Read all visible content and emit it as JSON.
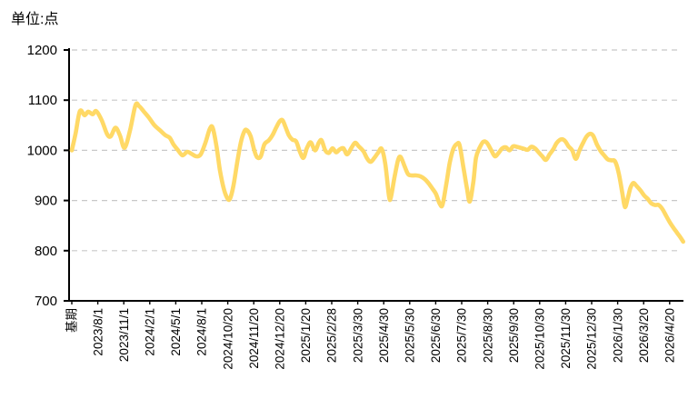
{
  "chart": {
    "unit_label": "单位:点"
  },
  "chart_data": {
    "type": "line",
    "title": "单位:点",
    "xlabel": "",
    "ylabel": "点",
    "ylim": [
      700,
      1200
    ],
    "yticks": [
      700,
      800,
      900,
      1000,
      1100,
      1200
    ],
    "grid": "horizontal-dashed",
    "legend": "none",
    "x_unit": "label_index",
    "x_labels": [
      "基期",
      "2023/8/1",
      "2023/11/1",
      "2024/2/1",
      "2024/5/1",
      "2024/8/1",
      "2024/10/20",
      "2024/11/20",
      "2024/12/20",
      "2025/1/20",
      "2025/2/28",
      "2025/3/30",
      "2025/4/30",
      "2025/5/30",
      "2025/6/30",
      "2025/7/30",
      "2025/8/30",
      "2025/9/30",
      "2025/10/30",
      "2025/11/30",
      "2025/12/30",
      "2026/1/30",
      "2026/3/20",
      "2026/4/20"
    ],
    "colors": {
      "line": "#FFD966",
      "grid": "#C8C8C8",
      "axis": "#000000",
      "text": "#000000",
      "background": "#FFFFFF"
    },
    "series": [
      {
        "points": [
          [
            0,
            1000
          ],
          [
            0.14,
            1032
          ],
          [
            0.31,
            1078
          ],
          [
            0.49,
            1070
          ],
          [
            0.63,
            1077
          ],
          [
            0.8,
            1072
          ],
          [
            0.94,
            1078
          ],
          [
            1.15,
            1060
          ],
          [
            1.36,
            1032
          ],
          [
            1.5,
            1028
          ],
          [
            1.68,
            1045
          ],
          [
            1.85,
            1030
          ],
          [
            2.03,
            1005
          ],
          [
            2.24,
            1040
          ],
          [
            2.45,
            1090
          ],
          [
            2.59,
            1088
          ],
          [
            2.76,
            1078
          ],
          [
            2.97,
            1065
          ],
          [
            3.18,
            1050
          ],
          [
            3.39,
            1040
          ],
          [
            3.6,
            1030
          ],
          [
            3.77,
            1025
          ],
          [
            3.91,
            1012
          ],
          [
            4.09,
            1000
          ],
          [
            4.26,
            990
          ],
          [
            4.44,
            997
          ],
          [
            4.61,
            993
          ],
          [
            4.79,
            988
          ],
          [
            4.96,
            992
          ],
          [
            5.14,
            1015
          ],
          [
            5.31,
            1043
          ],
          [
            5.42,
            1045
          ],
          [
            5.56,
            1010
          ],
          [
            5.7,
            960
          ],
          [
            5.84,
            925
          ],
          [
            5.97,
            906
          ],
          [
            6.08,
            903
          ],
          [
            6.22,
            930
          ],
          [
            6.36,
            975
          ],
          [
            6.5,
            1015
          ],
          [
            6.64,
            1038
          ],
          [
            6.74,
            1040
          ],
          [
            6.88,
            1028
          ],
          [
            7.02,
            1000
          ],
          [
            7.13,
            986
          ],
          [
            7.27,
            988
          ],
          [
            7.41,
            1012
          ],
          [
            7.58,
            1020
          ],
          [
            7.72,
            1030
          ],
          [
            7.86,
            1045
          ],
          [
            8.0,
            1058
          ],
          [
            8.11,
            1060
          ],
          [
            8.21,
            1048
          ],
          [
            8.35,
            1030
          ],
          [
            8.49,
            1021
          ],
          [
            8.63,
            1018
          ],
          [
            8.77,
            998
          ],
          [
            8.91,
            985
          ],
          [
            9.05,
            1005
          ],
          [
            9.19,
            1016
          ],
          [
            9.36,
            1000
          ],
          [
            9.5,
            1015
          ],
          [
            9.61,
            1020
          ],
          [
            9.75,
            1000
          ],
          [
            9.89,
            995
          ],
          [
            10.03,
            1004
          ],
          [
            10.17,
            996
          ],
          [
            10.31,
            1002
          ],
          [
            10.45,
            1004
          ],
          [
            10.59,
            992
          ],
          [
            10.76,
            1005
          ],
          [
            10.9,
            1015
          ],
          [
            11.04,
            1008
          ],
          [
            11.22,
            998
          ],
          [
            11.36,
            984
          ],
          [
            11.5,
            977
          ],
          [
            11.64,
            985
          ],
          [
            11.78,
            995
          ],
          [
            11.92,
            1003
          ],
          [
            12.06,
            973
          ],
          [
            12.2,
            910
          ],
          [
            12.27,
            905
          ],
          [
            12.41,
            945
          ],
          [
            12.55,
            980
          ],
          [
            12.65,
            987
          ],
          [
            12.79,
            970
          ],
          [
            12.93,
            953
          ],
          [
            13.07,
            950
          ],
          [
            13.24,
            950
          ],
          [
            13.42,
            948
          ],
          [
            13.59,
            942
          ],
          [
            13.73,
            934
          ],
          [
            13.87,
            924
          ],
          [
            14.01,
            913
          ],
          [
            14.15,
            894
          ],
          [
            14.26,
            891
          ],
          [
            14.4,
            930
          ],
          [
            14.54,
            975
          ],
          [
            14.68,
            1003
          ],
          [
            14.82,
            1013
          ],
          [
            14.92,
            1010
          ],
          [
            15.06,
            968
          ],
          [
            15.2,
            925
          ],
          [
            15.31,
            898
          ],
          [
            15.45,
            938
          ],
          [
            15.55,
            985
          ],
          [
            15.69,
            1005
          ],
          [
            15.83,
            1017
          ],
          [
            15.97,
            1015
          ],
          [
            16.14,
            1000
          ],
          [
            16.28,
            988
          ],
          [
            16.42,
            995
          ],
          [
            16.56,
            1004
          ],
          [
            16.7,
            1006
          ],
          [
            16.84,
            1000
          ],
          [
            16.98,
            1008
          ],
          [
            17.12,
            1007
          ],
          [
            17.26,
            1005
          ],
          [
            17.4,
            1003
          ],
          [
            17.54,
            1001
          ],
          [
            17.68,
            1007
          ],
          [
            17.82,
            1004
          ],
          [
            17.96,
            996
          ],
          [
            18.1,
            988
          ],
          [
            18.24,
            981
          ],
          [
            18.38,
            992
          ],
          [
            18.52,
            1002
          ],
          [
            18.66,
            1015
          ],
          [
            18.83,
            1022
          ],
          [
            18.97,
            1019
          ],
          [
            19.11,
            1008
          ],
          [
            19.25,
            1000
          ],
          [
            19.39,
            983
          ],
          [
            19.53,
            1000
          ],
          [
            19.67,
            1015
          ],
          [
            19.81,
            1028
          ],
          [
            19.95,
            1033
          ],
          [
            20.06,
            1029
          ],
          [
            20.2,
            1012
          ],
          [
            20.34,
            999
          ],
          [
            20.48,
            990
          ],
          [
            20.62,
            982
          ],
          [
            20.76,
            980
          ],
          [
            20.9,
            978
          ],
          [
            21.04,
            955
          ],
          [
            21.18,
            915
          ],
          [
            21.28,
            887
          ],
          [
            21.39,
            905
          ],
          [
            21.49,
            925
          ],
          [
            21.6,
            935
          ],
          [
            21.74,
            928
          ],
          [
            21.88,
            920
          ],
          [
            22.02,
            910
          ],
          [
            22.16,
            903
          ],
          [
            22.3,
            894
          ],
          [
            22.44,
            891
          ],
          [
            22.58,
            891
          ],
          [
            22.72,
            883
          ],
          [
            22.86,
            870
          ],
          [
            23.0,
            857
          ],
          [
            23.14,
            846
          ],
          [
            23.28,
            836
          ],
          [
            23.42,
            826
          ],
          [
            23.52,
            818
          ]
        ]
      }
    ]
  }
}
